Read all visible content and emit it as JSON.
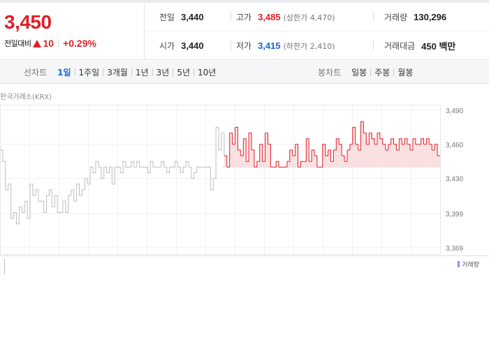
{
  "summary": {
    "price": "3,450",
    "change_label": "전일대비",
    "change_icon": "up-triangle-icon",
    "change_value": "10",
    "change_rate": "+0.29%",
    "colors": {
      "up": "#e01f26",
      "down": "#1e64d6"
    },
    "stats": {
      "prev_close": {
        "label": "전일",
        "value": "3,440"
      },
      "high": {
        "label": "고가",
        "value": "3,485",
        "sub": "(상한가 4,470)"
      },
      "volume": {
        "label": "거래량",
        "value": "130,296"
      },
      "open": {
        "label": "시가",
        "value": "3,440"
      },
      "low": {
        "label": "저가",
        "value": "3,415",
        "sub": "(하한가 2,410)"
      },
      "trade_value": {
        "label": "거래대금",
        "value": "450 백만"
      }
    }
  },
  "tabs": {
    "line_title": "선차트",
    "line_items": [
      "1일",
      "1주일",
      "3개월",
      "1년",
      "3년",
      "5년",
      "10년"
    ],
    "line_active": 0,
    "candle_title": "봉차트",
    "candle_items": [
      "일봉",
      "주봉",
      "월봉"
    ]
  },
  "chart": {
    "exchange": "한국거래소(KRX)",
    "volume_legend": "거래량"
  },
  "chart_data": {
    "type": "line",
    "y_ticks": [
      "3,490",
      "3,460",
      "3,430",
      "3,399",
      "3,369"
    ],
    "ylim": [
      3369,
      3490
    ],
    "reference_line": 3440,
    "grid": true,
    "series": [
      {
        "values": [
          3455,
          3445,
          3420,
          3425,
          3395,
          3400,
          3390,
          3405,
          3400,
          3410,
          3395,
          3425,
          3415,
          3420,
          3410,
          3410,
          3400,
          3415,
          3420,
          3405,
          3415,
          3400,
          3400,
          3410,
          3400,
          3415,
          3420,
          3410,
          3425,
          3415,
          3420,
          3430,
          3425,
          3440,
          3435,
          3445,
          3440,
          3430,
          3440,
          3435,
          3440,
          3425,
          3440,
          3440,
          3435,
          3445,
          3440,
          3440,
          3445,
          3440,
          3445,
          3440,
          3440,
          3440,
          3435,
          3445,
          3440,
          3440,
          3440,
          3445,
          3440,
          3435,
          3440,
          3440,
          3445,
          3440,
          3435,
          3440,
          3445,
          3440,
          3430,
          3435,
          3440,
          3440,
          3440,
          3440,
          3440,
          3420,
          3430,
          3475,
          3455,
          3470,
          3450,
          3440,
          3470,
          3460,
          3475,
          3455,
          3450,
          3465,
          3445,
          3470,
          3455,
          3440,
          3445,
          3460,
          3445,
          3470,
          3460,
          3440,
          3440,
          3445,
          3440,
          3440,
          3440,
          3445,
          3455,
          3450,
          3460,
          3440,
          3445,
          3445,
          3465,
          3445,
          3455,
          3450,
          3440,
          3440,
          3460,
          3450,
          3455,
          3445,
          3455,
          3465,
          3460,
          3450,
          3445,
          3455,
          3460,
          3475,
          3460,
          3455,
          3480,
          3470,
          3460,
          3470,
          3465,
          3460,
          3470,
          3465,
          3460,
          3455,
          3460,
          3465,
          3460,
          3455,
          3465,
          3460,
          3465,
          3460,
          3455,
          3465,
          3460,
          3460,
          3465,
          3460,
          3465,
          3460,
          3455,
          3460,
          3450,
          3450
        ]
      }
    ]
  }
}
